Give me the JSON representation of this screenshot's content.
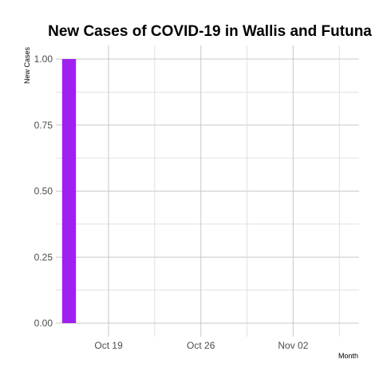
{
  "chart_data": {
    "type": "bar",
    "title": "New Cases of COVID-19 in Wallis and Futuna",
    "xlabel": "Month",
    "ylabel": "New Cases",
    "x": [
      "2020-10-16"
    ],
    "values": [
      1
    ],
    "ylim": [
      0,
      1
    ],
    "y_ticks": [
      "0.00",
      "0.25",
      "0.50",
      "0.75",
      "1.00"
    ],
    "x_ticks": [
      {
        "date": "2020-10-19",
        "label": "Oct 19"
      },
      {
        "date": "2020-10-26",
        "label": "Oct 26"
      },
      {
        "date": "2020-11-02",
        "label": "Nov 02"
      }
    ],
    "xlim": [
      "2020-10-15",
      "2020-11-07"
    ],
    "bar_color": "#a020f0",
    "grid": true,
    "legend": "none"
  }
}
